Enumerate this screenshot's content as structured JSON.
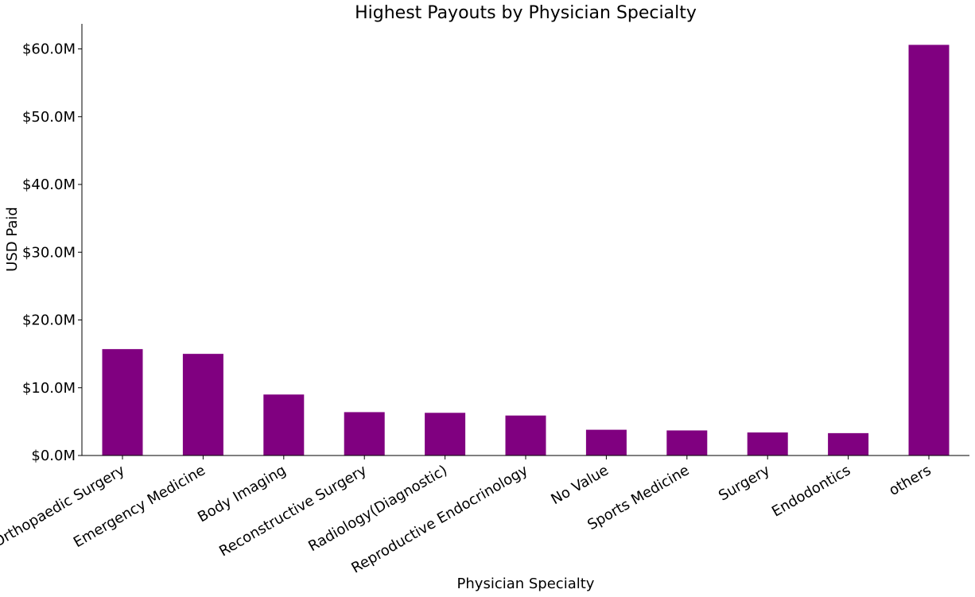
{
  "chart_data": {
    "type": "bar",
    "title": "Highest Payouts by Physician Specialty",
    "xlabel": "Physician Specialty",
    "ylabel": "USD Paid",
    "categories": [
      "Orthopaedic Surgery",
      "Emergency Medicine",
      "Body Imaging",
      "Reconstructive Surgery",
      "Radiology(Diagnostic)",
      "Reproductive Endocrinology",
      "No Value",
      "Sports Medicine",
      "Surgery",
      "Endodontics",
      "others"
    ],
    "values": [
      15.7,
      15.0,
      9.0,
      6.4,
      6.3,
      5.9,
      3.8,
      3.7,
      3.4,
      3.3,
      60.6
    ],
    "value_unit": "millions USD",
    "ylim": [
      0,
      63.7
    ],
    "yticks": [
      0,
      10,
      20,
      30,
      40,
      50,
      60
    ],
    "ytick_labels": [
      "$0.0M",
      "$10.0M",
      "$20.0M",
      "$30.0M",
      "$40.0M",
      "$50.0M",
      "$60.0M"
    ],
    "bar_color": "#800080",
    "grid": false,
    "legend": "none"
  }
}
